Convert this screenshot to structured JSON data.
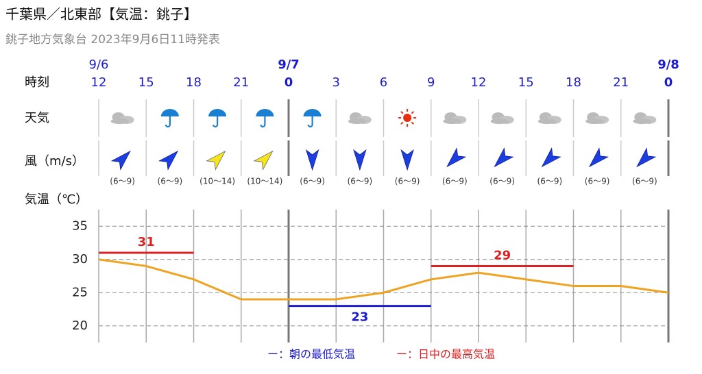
{
  "chart_data": {
    "type": "line",
    "title": "千葉県／北東部【気温：銚子】",
    "subtitle": "銚子地方気象台 2023年9月6日11時発表",
    "time_label": "時刻",
    "weather_label": "天気",
    "wind_label": "風（m/s）",
    "temp_label": "気温（℃）",
    "date_labels": [
      "9/6",
      null,
      null,
      null,
      "9/7",
      null,
      null,
      null,
      null,
      null,
      null,
      null,
      "9/8"
    ],
    "categories": [
      "12",
      "15",
      "18",
      "21",
      "0",
      "3",
      "6",
      "9",
      "12",
      "15",
      "18",
      "21",
      "0"
    ],
    "wind_speeds": [
      "(6～9)",
      "(6～9)",
      "(10～14)",
      "(10～14)",
      "(6～9)",
      "(6～9)",
      "(6～9)",
      "(6～9)",
      "(6～9)",
      "(6～9)",
      "(6～9)",
      "(6～9)"
    ],
    "ylim": [
      17.5,
      37.5
    ],
    "yticks": [
      20,
      25,
      30,
      35
    ],
    "grid": true,
    "series": [
      {
        "color": "#f0a320",
        "values": [
          30,
          29,
          27,
          24,
          24,
          24,
          25,
          27,
          28,
          27,
          26,
          26,
          25
        ]
      },
      {
        "name": "ー：朝の最低気温",
        "color": "#1c1cd0",
        "label_position": "below",
        "values": [
          null,
          null,
          null,
          null,
          23,
          23,
          23,
          23,
          null,
          null,
          null,
          null,
          null
        ]
      },
      {
        "name": "ー：日中の最高気温",
        "color": "#e02020",
        "label_position": "above",
        "values": [
          31,
          31,
          31,
          null,
          null,
          null,
          null,
          29,
          29,
          29,
          29,
          null,
          null
        ]
      }
    ]
  }
}
